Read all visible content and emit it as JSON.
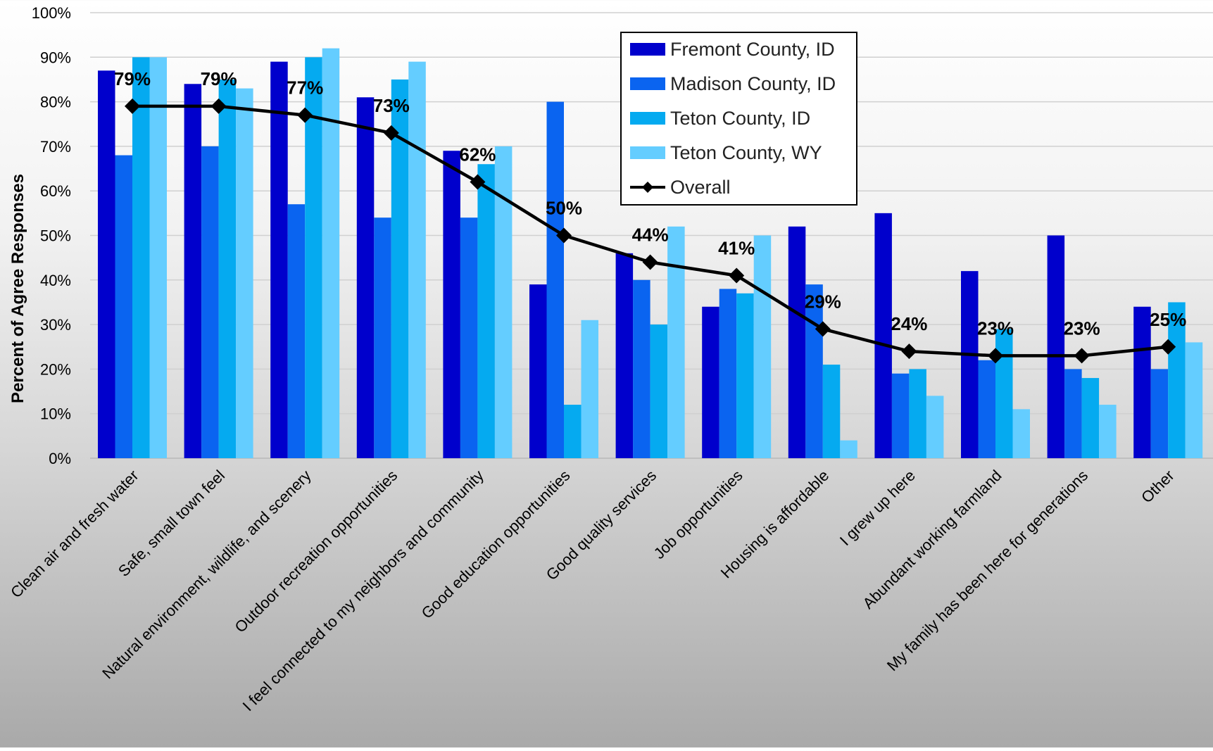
{
  "chart_data": {
    "type": "bar",
    "title": "",
    "xlabel": "",
    "ylabel": "Percent of Agree Responses",
    "ylim": [
      0,
      100
    ],
    "yticks": [
      "0%",
      "10%",
      "20%",
      "30%",
      "40%",
      "50%",
      "60%",
      "70%",
      "80%",
      "90%",
      "100%"
    ],
    "grid": true,
    "legend_position": "top-right",
    "categories": [
      "Clean air and fresh water",
      "Safe, small town feel",
      "Natural environment, wildlife, and scenery",
      "Outdoor recreation opportunities",
      "I feel connected to my neighbors and community",
      "Good education opportunities",
      "Good quality services",
      "Job opportunities",
      "Housing is affordable",
      "I grew up here",
      "Abundant working farmland",
      "My family has been here for generations",
      "Other"
    ],
    "series": [
      {
        "name": "Fremont County, ID",
        "type": "bar",
        "color": "#0000cc",
        "values": [
          87,
          84,
          89,
          81,
          69,
          39,
          46,
          34,
          52,
          55,
          42,
          50,
          34
        ]
      },
      {
        "name": "Madison County, ID",
        "type": "bar",
        "color": "#0a64f0",
        "values": [
          68,
          70,
          57,
          54,
          54,
          80,
          40,
          38,
          39,
          19,
          22,
          20,
          20
        ]
      },
      {
        "name": "Teton County, ID",
        "type": "bar",
        "color": "#05aaf0",
        "values": [
          90,
          85,
          90,
          85,
          66,
          12,
          30,
          37,
          21,
          20,
          29,
          18,
          35
        ]
      },
      {
        "name": "Teton County, WY",
        "type": "bar",
        "color": "#64cdff",
        "values": [
          90,
          83,
          92,
          89,
          70,
          31,
          52,
          50,
          4,
          14,
          11,
          12,
          26
        ]
      },
      {
        "name": "Overall",
        "type": "line",
        "color": "#000000",
        "values": [
          79,
          79,
          77,
          73,
          62,
          50,
          44,
          41,
          29,
          24,
          23,
          23,
          25
        ]
      }
    ],
    "data_labels": [
      "79%",
      "79%",
      "77%",
      "73%",
      "62%",
      "50%",
      "44%",
      "41%",
      "29%",
      "24%",
      "23%",
      "23%",
      "25%"
    ]
  }
}
